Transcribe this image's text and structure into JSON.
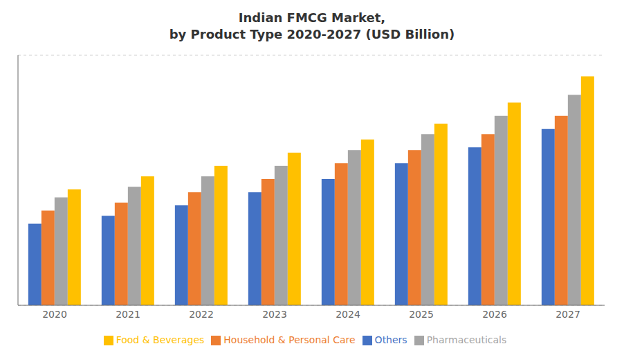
{
  "chart_data": {
    "type": "bar",
    "title": "Indian FMCG Market,\nby Product Type 2020-2027 (USD Billion)",
    "categories": [
      "2020",
      "2021",
      "2022",
      "2023",
      "2024",
      "2025",
      "2026",
      "2027"
    ],
    "series": [
      {
        "name": "Others",
        "color": "#4472C4",
        "values": [
          31,
          34,
          38,
          43,
          48,
          54,
          60,
          67
        ]
      },
      {
        "name": "Household & Personal Care",
        "color": "#ED7D31",
        "values": [
          36,
          39,
          43,
          48,
          54,
          59,
          65,
          72
        ]
      },
      {
        "name": "Pharmaceuticals",
        "color": "#A5A5A5",
        "values": [
          41,
          45,
          49,
          53,
          59,
          65,
          72,
          80
        ]
      },
      {
        "name": "Food & Beverages",
        "color": "#FFC000",
        "values": [
          44,
          49,
          53,
          58,
          63,
          69,
          77,
          87
        ]
      }
    ],
    "ylim": [
      0,
      95
    ],
    "yticks": [
      0,
      10,
      20,
      30,
      40,
      50,
      60,
      70,
      80,
      90
    ],
    "grid": true,
    "legend": "bottom",
    "tick_labels": "x"
  }
}
